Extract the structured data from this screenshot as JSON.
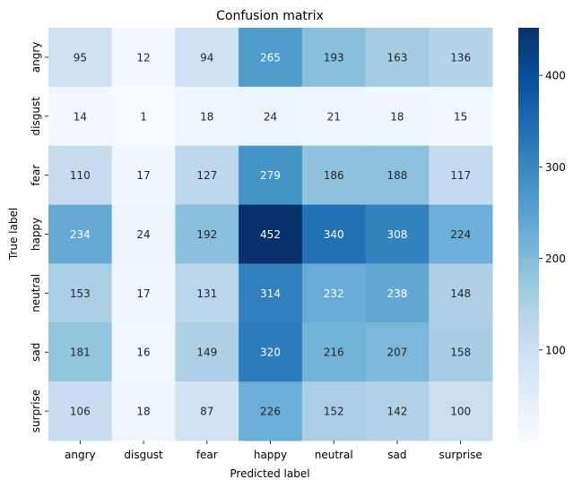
{
  "chart_data": {
    "type": "heatmap",
    "title": "Confusion matrix",
    "xlabel": "Predicted label",
    "ylabel": "True label",
    "x_categories": [
      "angry",
      "disgust",
      "fear",
      "happy",
      "neutral",
      "sad",
      "surprise"
    ],
    "y_categories": [
      "angry",
      "disgust",
      "fear",
      "happy",
      "neutral",
      "sad",
      "surprise"
    ],
    "values": [
      [
        95,
        12,
        94,
        265,
        193,
        163,
        136
      ],
      [
        14,
        1,
        18,
        24,
        21,
        18,
        15
      ],
      [
        110,
        17,
        127,
        279,
        186,
        188,
        117
      ],
      [
        234,
        24,
        192,
        452,
        340,
        308,
        224
      ],
      [
        153,
        17,
        131,
        314,
        232,
        238,
        148
      ],
      [
        181,
        16,
        149,
        320,
        216,
        207,
        158
      ],
      [
        106,
        18,
        87,
        226,
        152,
        142,
        100
      ]
    ],
    "colormap": "Blues",
    "color_range": [
      1,
      452
    ],
    "colorbar_ticks": [
      100,
      200,
      300,
      400
    ],
    "annotations": true,
    "grid": false
  }
}
